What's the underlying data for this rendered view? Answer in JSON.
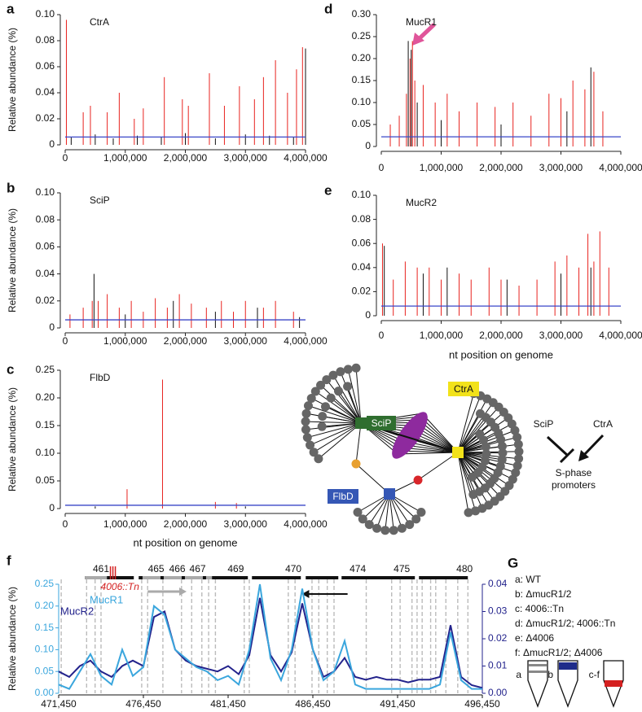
{
  "chart_data": [
    {
      "type": "spike",
      "panel": "a",
      "title": "CtrA",
      "ylabel": "Relative abundance (%)",
      "xlim": [
        0,
        4000000
      ],
      "ylim": [
        0,
        0.1
      ],
      "xticks": [
        0,
        {
          "value": 1000000,
          "label": "1,000,000"
        },
        {
          "value": 2000000,
          "label": "2,000,000"
        },
        {
          "value": 3000000,
          "label": "3,000,000"
        },
        {
          "value": 4000000,
          "label": "4,000,000"
        }
      ],
      "yticks": [
        0,
        0.02,
        0.04,
        0.06,
        0.08,
        {
          "value": 0.1,
          "label": "0.10"
        }
      ],
      "threshold": 0.006,
      "threshold_color": "#3a47c8",
      "series": [
        {
          "color": "#111111",
          "x": [
            100000,
            500000,
            800000,
            1200000,
            1600000,
            2000000,
            2500000,
            3000000,
            3400000,
            3800000,
            4000000
          ],
          "values": [
            0.006,
            0.008,
            0.005,
            0.007,
            0.006,
            0.009,
            0.005,
            0.008,
            0.007,
            0.006,
            0.074
          ]
        },
        {
          "color": "#e8231f",
          "x": [
            20000,
            300000,
            420000,
            700000,
            900000,
            1150000,
            1300000,
            1650000,
            1950000,
            2050000,
            2400000,
            2650000,
            2900000,
            3150000,
            3300000,
            3500000,
            3700000,
            3850000,
            3950000
          ],
          "values": [
            0.096,
            0.025,
            0.03,
            0.025,
            0.04,
            0.02,
            0.028,
            0.052,
            0.035,
            0.03,
            0.055,
            0.03,
            0.045,
            0.035,
            0.052,
            0.065,
            0.04,
            0.058,
            0.075
          ]
        }
      ]
    },
    {
      "type": "spike",
      "panel": "b",
      "title": "SciP",
      "ylabel": "Relative abundance (%)",
      "xlim": [
        0,
        4000000
      ],
      "ylim": [
        0,
        0.1
      ],
      "xticks": [
        0,
        {
          "value": 1000000,
          "label": "1,000,000"
        },
        {
          "value": 2000000,
          "label": "2,000,000"
        },
        {
          "value": 3000000,
          "label": "3,000,000"
        },
        {
          "value": 4000000,
          "label": "4,000,000"
        }
      ],
      "yticks": [
        0,
        0.02,
        0.04,
        0.06,
        0.08,
        {
          "value": 0.1,
          "label": "0.10"
        }
      ],
      "threshold": 0.006,
      "threshold_color": "#3a47c8",
      "series": [
        {
          "color": "#111111",
          "x": [
            480000,
            1000000,
            1800000,
            2500000,
            3200000,
            3900000
          ],
          "values": [
            0.04,
            0.01,
            0.02,
            0.012,
            0.015,
            0.008
          ]
        },
        {
          "color": "#e8231f",
          "x": [
            80000,
            300000,
            450000,
            550000,
            700000,
            900000,
            1100000,
            1300000,
            1500000,
            1700000,
            1900000,
            2100000,
            2350000,
            2600000,
            2800000,
            3000000,
            3300000,
            3500000,
            3800000
          ],
          "values": [
            0.01,
            0.015,
            0.02,
            0.02,
            0.025,
            0.015,
            0.02,
            0.012,
            0.022,
            0.015,
            0.025,
            0.018,
            0.015,
            0.02,
            0.012,
            0.02,
            0.015,
            0.02,
            0.012
          ]
        }
      ]
    },
    {
      "type": "spike",
      "panel": "c",
      "title": "FlbD",
      "ylabel": "Relative abundance (%)",
      "xlabel": "nt position on genome",
      "xlim": [
        0,
        4000000
      ],
      "ylim": [
        0,
        0.25
      ],
      "xticks": [
        0,
        {
          "value": 1000000,
          "label": "1,000,000"
        },
        {
          "value": 2000000,
          "label": "2,000,000"
        },
        {
          "value": 3000000,
          "label": "3,000,000"
        },
        {
          "value": 4000000,
          "label": "4,000,000"
        }
      ],
      "yticks": [
        0,
        0.05,
        {
          "value": 0.1,
          "label": "0.10"
        },
        0.15,
        {
          "value": 0.2,
          "label": "0.20"
        },
        0.25
      ],
      "threshold": 0.006,
      "threshold_color": "#3a47c8",
      "series": [
        {
          "color": "#111111",
          "x": [
            500000,
            3000000
          ],
          "values": [
            0.004,
            0.004
          ]
        },
        {
          "color": "#e8231f",
          "x": [
            1030000,
            1620000,
            2500000,
            2850000
          ],
          "values": [
            0.035,
            0.233,
            0.012,
            0.01
          ]
        }
      ]
    },
    {
      "type": "spike",
      "panel": "d",
      "title": "MucR1",
      "xlim": [
        0,
        4000000
      ],
      "ylim": [
        0,
        0.3
      ],
      "xticks": [
        0,
        {
          "value": 1000000,
          "label": "1,000,000"
        },
        {
          "value": 2000000,
          "label": "2,000,000"
        },
        {
          "value": 3000000,
          "label": "3,000,000"
        },
        {
          "value": 4000000,
          "label": "4,000,000"
        }
      ],
      "yticks": [
        0,
        0.05,
        {
          "value": 0.1,
          "label": "0.10"
        },
        0.15,
        {
          "value": 0.2,
          "label": "0.20"
        },
        0.25,
        {
          "value": 0.3,
          "label": "0.30"
        }
      ],
      "threshold": 0.022,
      "threshold_color": "#3a47c8",
      "series": [
        {
          "color": "#111111",
          "x": [
            450000,
            500000,
            600000,
            1000000,
            2000000,
            3100000,
            3500000
          ],
          "values": [
            0.24,
            0.22,
            0.1,
            0.06,
            0.05,
            0.08,
            0.18
          ]
        },
        {
          "color": "#e8231f",
          "x": [
            150000,
            300000,
            420000,
            480000,
            520000,
            560000,
            700000,
            900000,
            1100000,
            1300000,
            1600000,
            1900000,
            2200000,
            2500000,
            2800000,
            3000000,
            3200000,
            3400000,
            3550000,
            3700000
          ],
          "values": [
            0.05,
            0.07,
            0.12,
            0.2,
            0.24,
            0.15,
            0.14,
            0.1,
            0.12,
            0.08,
            0.1,
            0.09,
            0.1,
            0.07,
            0.12,
            0.11,
            0.15,
            0.13,
            0.17,
            0.08
          ]
        }
      ]
    },
    {
      "type": "spike",
      "panel": "e",
      "title": "MucR2",
      "xlabel": "nt position on genome",
      "xlim": [
        0,
        4000000
      ],
      "ylim": [
        0,
        0.1
      ],
      "xticks": [
        0,
        {
          "value": 1000000,
          "label": "1,000,000"
        },
        {
          "value": 2000000,
          "label": "2,000,000"
        },
        {
          "value": 3000000,
          "label": "3,000,000"
        },
        {
          "value": 4000000,
          "label": "4,000,000"
        }
      ],
      "yticks": [
        0,
        0.02,
        0.04,
        0.06,
        0.08,
        {
          "value": 0.1,
          "label": "0.10"
        }
      ],
      "threshold": 0.008,
      "threshold_color": "#3a47c8",
      "series": [
        {
          "color": "#111111",
          "x": [
            50000,
            700000,
            1100000,
            2100000,
            3000000,
            3500000
          ],
          "values": [
            0.058,
            0.035,
            0.04,
            0.03,
            0.035,
            0.04
          ]
        },
        {
          "color": "#e8231f",
          "x": [
            20000,
            200000,
            400000,
            600000,
            800000,
            1000000,
            1300000,
            1500000,
            1800000,
            2000000,
            2300000,
            2600000,
            2900000,
            3100000,
            3300000,
            3450000,
            3550000,
            3650000,
            3800000
          ],
          "values": [
            0.06,
            0.03,
            0.045,
            0.04,
            0.04,
            0.03,
            0.035,
            0.03,
            0.04,
            0.03,
            0.025,
            0.03,
            0.045,
            0.05,
            0.04,
            0.068,
            0.045,
            0.07,
            0.04
          ]
        }
      ]
    },
    {
      "type": "line",
      "panel": "f",
      "ylabel": "Relative abundance (%)",
      "xlim": [
        471450,
        496450
      ],
      "ylim": [
        0,
        0.25
      ],
      "y2lim": [
        0,
        0.04
      ],
      "xticks": [
        {
          "value": 471450,
          "label": "471,450"
        },
        {
          "value": 476450,
          "label": "476,450"
        },
        {
          "value": 481450,
          "label": "481,450"
        },
        {
          "value": 486450,
          "label": "486,450"
        },
        {
          "value": 491450,
          "label": "491,450"
        },
        {
          "value": 496450,
          "label": "496,450"
        }
      ],
      "yticks": [
        {
          "value": 0,
          "label": "0.00"
        },
        0.05,
        {
          "value": 0.1,
          "label": "0.10"
        },
        0.15,
        {
          "value": 0.2,
          "label": "0.20"
        },
        0.25
      ],
      "y2ticks": [
        {
          "value": 0,
          "label": "0.00"
        },
        0.01,
        0.02,
        0.03,
        0.04
      ],
      "x": [
        471450,
        472075,
        472700,
        473325,
        473950,
        474575,
        475200,
        475825,
        476450,
        477075,
        477700,
        478325,
        478950,
        479575,
        480200,
        480825,
        481450,
        482075,
        482700,
        483325,
        483950,
        484575,
        485200,
        485825,
        486450,
        487075,
        487700,
        488325,
        488950,
        489575,
        490200,
        490825,
        491450,
        492075,
        492700,
        493325,
        493950,
        494575,
        495200,
        495825,
        496450
      ],
      "series": [
        {
          "name": "MucR1",
          "color": "#3aa6dd",
          "values": [
            0.02,
            0.01,
            0.05,
            0.09,
            0.04,
            0.02,
            0.1,
            0.04,
            0.06,
            0.2,
            0.18,
            0.1,
            0.08,
            0.06,
            0.05,
            0.03,
            0.04,
            0.02,
            0.1,
            0.25,
            0.08,
            0.03,
            0.1,
            0.24,
            0.1,
            0.03,
            0.05,
            0.12,
            0.02,
            0.01,
            0.01,
            0.01,
            0.01,
            0.01,
            0.01,
            0.01,
            0.02,
            0.14,
            0.03,
            0.01,
            0.01
          ]
        },
        {
          "name": "MucR2",
          "color": "#23238c",
          "axis": "y2",
          "values": [
            0.008,
            0.006,
            0.01,
            0.012,
            0.008,
            0.006,
            0.01,
            0.012,
            0.01,
            0.028,
            0.03,
            0.016,
            0.012,
            0.01,
            0.009,
            0.008,
            0.01,
            0.007,
            0.014,
            0.035,
            0.014,
            0.008,
            0.015,
            0.033,
            0.016,
            0.006,
            0.008,
            0.013,
            0.006,
            0.005,
            0.006,
            0.005,
            0.005,
            0.004,
            0.005,
            0.005,
            0.006,
            0.025,
            0.006,
            0.003,
            0.002
          ]
        }
      ],
      "genes": [
        {
          "label": "461",
          "x": 473950
        },
        {
          "label": "465",
          "x": 477200
        },
        {
          "label": "466",
          "x": 478450
        },
        {
          "label": "467",
          "x": 479650
        },
        {
          "label": "469",
          "x": 481900
        },
        {
          "label": "470",
          "x": 485300
        },
        {
          "label": "474",
          "x": 489100
        },
        {
          "label": "475",
          "x": 491700
        },
        {
          "label": "480",
          "x": 495400
        }
      ],
      "insertion": {
        "label": "4006::Tn",
        "x": 474650
      },
      "dashed_lines": [
        471600,
        473100,
        473600,
        473950,
        476350,
        476700,
        477600,
        478700,
        479300,
        479900,
        480300,
        480700,
        482400,
        482700,
        485000,
        485400,
        486400,
        486800,
        487300,
        487700,
        489600,
        491100,
        491600,
        492300,
        492600,
        492900,
        493400,
        493700,
        494300,
        495000,
        495600
      ]
    }
  ],
  "network": {
    "nodes": [
      "SciP",
      "CtrA",
      "FlbD"
    ],
    "schematic": {
      "regulators": [
        "SciP",
        "CtrA"
      ],
      "target": [
        "S-phase",
        "promoters"
      ]
    }
  },
  "panel_g": {
    "panel": "G",
    "items": [
      "a: WT",
      "b:  ΔmucR1/2",
      "c: 4006::Tn",
      "d: ΔmucR1/2; 4006::Tn",
      "e: Δ4006",
      "f: ΔmucR1/2; Δ4006"
    ],
    "tube_labels": [
      "a",
      "b",
      "c-f"
    ]
  }
}
